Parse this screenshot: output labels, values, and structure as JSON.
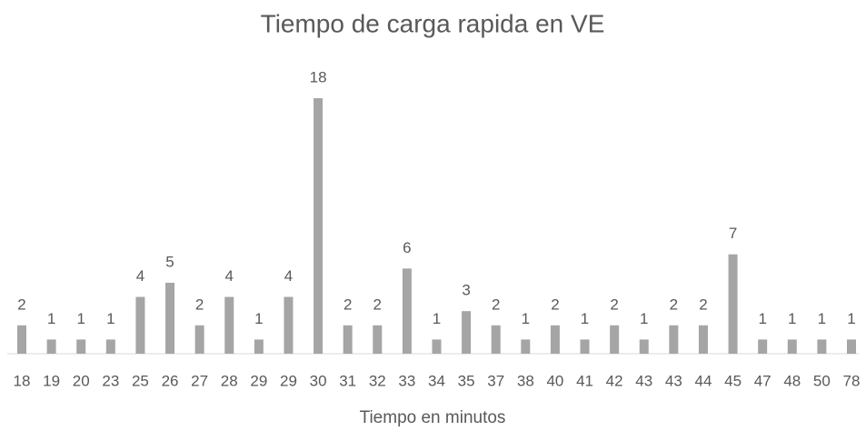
{
  "chart_data": {
    "type": "bar",
    "title": "Tiempo de carga rapida en VE",
    "x_label": "Tiempo en minutos",
    "categories": [
      "18",
      "19",
      "20",
      "23",
      "25",
      "26",
      "27",
      "28",
      "29",
      "29",
      "30",
      "31",
      "32",
      "33",
      "34",
      "35",
      "37",
      "38",
      "40",
      "41",
      "42",
      "43",
      "43",
      "44",
      "45",
      "47",
      "48",
      "50",
      "78"
    ],
    "values": [
      2,
      1,
      1,
      1,
      4,
      5,
      2,
      4,
      1,
      4,
      18,
      2,
      2,
      6,
      1,
      3,
      2,
      1,
      2,
      1,
      2,
      1,
      2,
      2,
      7,
      1,
      1,
      1,
      1
    ],
    "color": "#a5a5a5",
    "grid": false
  }
}
